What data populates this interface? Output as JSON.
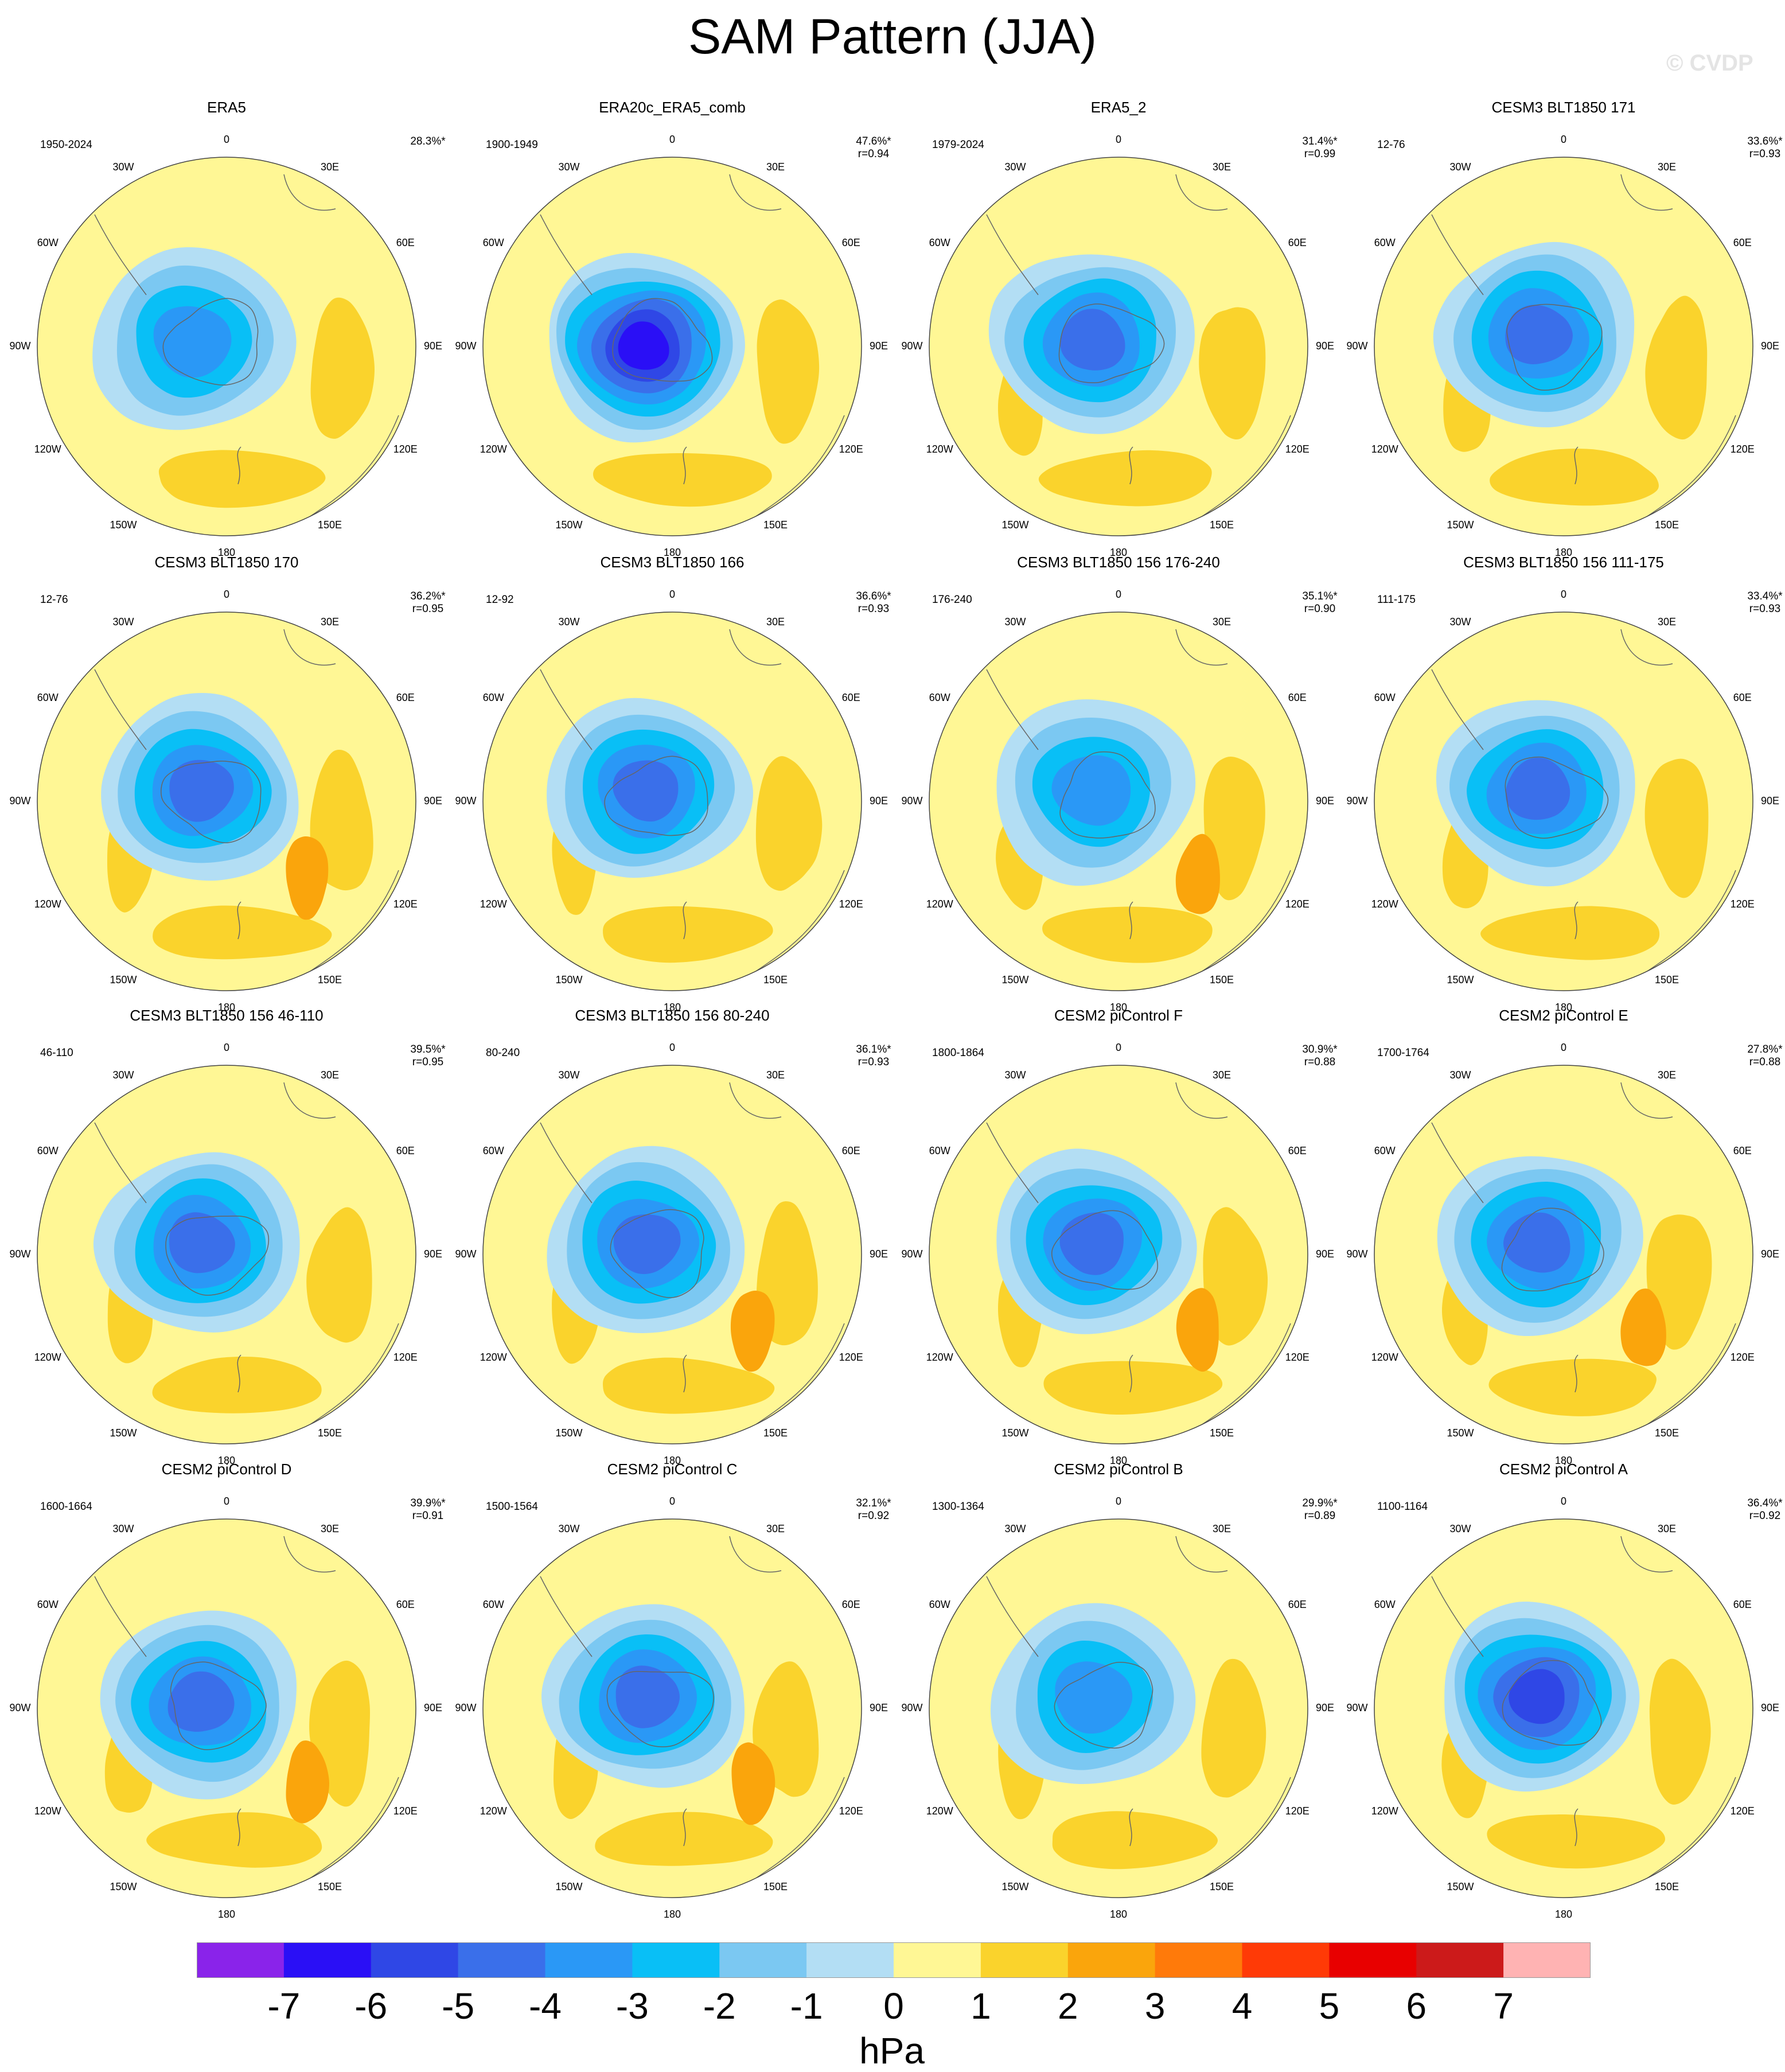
{
  "title": "SAM Pattern (JJA)",
  "watermark": "© CVDP",
  "chart_data": {
    "type": "heatmap",
    "projection": "south-polar-stereographic",
    "variable": "SAM sea level pressure regression",
    "units": "hPa",
    "colorbar": {
      "levels": [
        -7,
        -6,
        -5,
        -4,
        -3,
        -2,
        -1,
        0,
        1,
        2,
        3,
        4,
        5,
        6,
        7
      ],
      "colors": [
        "#8a23ea",
        "#2a0ff6",
        "#2f47e6",
        "#3a6fea",
        "#2a98f6",
        "#09bff6",
        "#7bc8f2",
        "#b3def4",
        "#fff795",
        "#fad32c",
        "#faa50c",
        "#ff7a0a",
        "#ff3a06",
        "#e80000",
        "#cc1a1a",
        "#ffb3b3"
      ],
      "units_label": "hPa"
    },
    "lon_labels": [
      "0",
      "30E",
      "60E",
      "90E",
      "120E",
      "150E",
      "180",
      "150W",
      "120W",
      "90W",
      "60W",
      "30W"
    ],
    "panels": [
      {
        "title": "ERA5",
        "period": "1950-2024",
        "pct": "28.3%*",
        "r": "",
        "low": -4,
        "ring": 1,
        "lowshift": [
          -15,
          10
        ]
      },
      {
        "title": "ERA20c_ERA5_comb",
        "period": "1900-1949",
        "pct": "47.6%*",
        "r": "r=0.94",
        "low": -7,
        "ring": 1,
        "lowshift": [
          -5,
          20
        ]
      },
      {
        "title": "ERA5_2",
        "period": "1979-2024",
        "pct": "31.4%*",
        "r": "r=0.99",
        "low": -5,
        "ring": 2,
        "lowshift": [
          0,
          10
        ]
      },
      {
        "title": "CESM3 BLT1850 171",
        "period": "12-76",
        "pct": "33.6%*",
        "r": "r=0.93",
        "low": -5,
        "ring": 2,
        "lowshift": [
          0,
          0
        ]
      },
      {
        "title": "CESM3 BLT1850 170",
        "period": "12-76",
        "pct": "36.2%*",
        "r": "r=0.95",
        "low": -5,
        "ring": 3,
        "lowshift": [
          0,
          0
        ]
      },
      {
        "title": "CESM3 BLT1850 166",
        "period": "12-92",
        "pct": "36.6%*",
        "r": "r=0.93",
        "low": -5,
        "ring": 2,
        "lowshift": [
          0,
          0
        ]
      },
      {
        "title": "CESM3 BLT1850 156 176-240",
        "period": "176-240",
        "pct": "35.1%*",
        "r": "r=0.90",
        "low": -4,
        "ring": 3,
        "lowshift": [
          0,
          0
        ]
      },
      {
        "title": "CESM3 BLT1850 156 111-175",
        "period": "111-175",
        "pct": "33.4%*",
        "r": "r=0.93",
        "low": -5,
        "ring": 2,
        "lowshift": [
          0,
          0
        ]
      },
      {
        "title": "CESM3 BLT1850 156 46-110",
        "period": "46-110",
        "pct": "39.5%*",
        "r": "r=0.95",
        "low": -5,
        "ring": 2,
        "lowshift": [
          0,
          0
        ]
      },
      {
        "title": "CESM3 BLT1850 156 80-240",
        "period": "80-240",
        "pct": "36.1%*",
        "r": "r=0.93",
        "low": -5,
        "ring": 3,
        "lowshift": [
          0,
          0
        ]
      },
      {
        "title": "CESM2 piControl F",
        "period": "1800-1864",
        "pct": "30.9%*",
        "r": "r=0.88",
        "low": -5,
        "ring": 3,
        "lowshift": [
          0,
          0
        ]
      },
      {
        "title": "CESM2 piControl E",
        "period": "1700-1764",
        "pct": "27.8%*",
        "r": "r=0.88",
        "low": -5,
        "ring": 3,
        "lowshift": [
          0,
          0
        ]
      },
      {
        "title": "CESM2 piControl D",
        "period": "1600-1664",
        "pct": "39.9%*",
        "r": "r=0.91",
        "low": -5,
        "ring": 3,
        "lowshift": [
          0,
          10
        ]
      },
      {
        "title": "CESM2 piControl C",
        "period": "1500-1564",
        "pct": "32.1%*",
        "r": "r=0.92",
        "low": -5,
        "ring": 3,
        "lowshift": [
          0,
          0
        ]
      },
      {
        "title": "CESM2 piControl B",
        "period": "1300-1364",
        "pct": "29.9%*",
        "r": "r=0.89",
        "low": -4,
        "ring": 2,
        "lowshift": [
          0,
          0
        ]
      },
      {
        "title": "CESM2 piControl A",
        "period": "1100-1164",
        "pct": "36.4%*",
        "r": "r=0.92",
        "low": -6,
        "ring": 2,
        "lowshift": [
          0,
          0
        ]
      }
    ]
  }
}
